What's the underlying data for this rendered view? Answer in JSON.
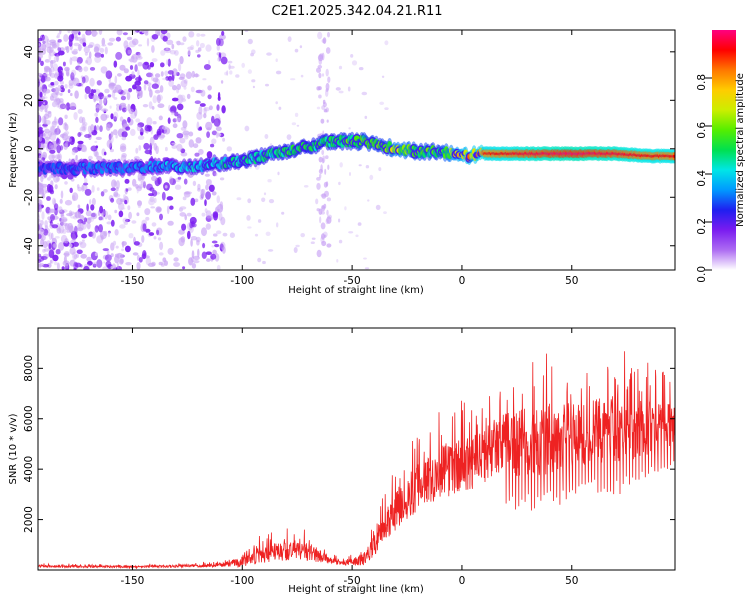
{
  "title": "C2E1.2025.342.04.21.R11",
  "colors": {
    "snr_line": "#ee2222",
    "frame": "#000000",
    "colorbar": [
      "#ffffff",
      "#ad6cf2",
      "#7a1cf0",
      "#1f1ff0",
      "#0099ff",
      "#00e6e6",
      "#00e050",
      "#55ee00",
      "#ccee00",
      "#ffcc00",
      "#ff7700",
      "#ff0000",
      "#ff0080"
    ]
  },
  "chart_data": [
    {
      "type": "heatmap",
      "name": "spectrogram",
      "xlabel": "Height of straight line (km)",
      "ylabel": "Frequency (Hz)",
      "xlim": [
        -193,
        97
      ],
      "ylim": [
        -50,
        49
      ],
      "xticks": [
        -150,
        -100,
        -50,
        0,
        50
      ],
      "xtick_labels": [
        "-150",
        "-100",
        "-50",
        "0",
        "50"
      ],
      "yticks": [
        -40,
        -20,
        0,
        20,
        40
      ],
      "ytick_labels": [
        "-40",
        "-20",
        "0",
        "20",
        "40"
      ],
      "ridge": {
        "x": [
          -193,
          -150,
          -120,
          -100,
          -80,
          -60,
          -45,
          -35,
          -30,
          -20,
          -10,
          0,
          10,
          30,
          50,
          70,
          85,
          97
        ],
        "freq": [
          -8,
          -8,
          -7,
          -5,
          -1,
          3,
          3,
          1,
          0,
          -1,
          -1,
          -3,
          -2,
          -2,
          -2,
          -2,
          -3,
          -3
        ],
        "amplitude": [
          0.3,
          0.35,
          0.45,
          0.5,
          0.55,
          0.55,
          0.6,
          0.6,
          0.7,
          0.62,
          0.6,
          0.8,
          0.9,
          0.95,
          0.98,
          0.95,
          0.92,
          0.92
        ]
      },
      "colorbar": {
        "label": "Normalized spectral amplitude",
        "range": [
          0,
          1
        ],
        "ticks": [
          0,
          0.2,
          0.4,
          0.6,
          0.8
        ],
        "tick_labels": [
          "0.0",
          "0.2",
          "0.4",
          "0.6",
          "0.8"
        ]
      }
    },
    {
      "type": "line",
      "name": "snr",
      "xlabel": "Height of straight line (km)",
      "ylabel": "SNR (10 * v/v)",
      "xlim": [
        -193,
        97
      ],
      "ylim": [
        0,
        9600
      ],
      "xticks": [
        -150,
        -100,
        -50,
        0,
        50
      ],
      "xtick_labels": [
        "-150",
        "-100",
        "-50",
        "0",
        "50"
      ],
      "yticks": [
        2000,
        4000,
        6000,
        8000
      ],
      "ytick_labels": [
        "2000",
        "4000",
        "6000",
        "8000"
      ],
      "envelope": {
        "x": [
          -193,
          -150,
          -110,
          -100,
          -95,
          -85,
          -75,
          -68,
          -60,
          -52,
          -45,
          -40,
          -35,
          -30,
          -20,
          -10,
          0,
          10,
          15,
          20,
          25,
          35,
          50,
          60,
          70,
          80,
          90,
          97
        ],
        "baseline": [
          150,
          120,
          180,
          300,
          500,
          650,
          750,
          650,
          350,
          250,
          400,
          900,
          1800,
          2300,
          3200,
          3800,
          4000,
          4300,
          4800,
          4800,
          4900,
          5000,
          5200,
          5400,
          5500,
          5500,
          5600,
          5700
        ],
        "spread": [
          120,
          100,
          180,
          550,
          800,
          1000,
          1000,
          900,
          300,
          250,
          650,
          1000,
          1800,
          2000,
          2400,
          2600,
          2800,
          2800,
          3000,
          3200,
          3400,
          3600,
          3400,
          3200,
          3400,
          3000,
          2400,
          2000
        ]
      }
    }
  ]
}
